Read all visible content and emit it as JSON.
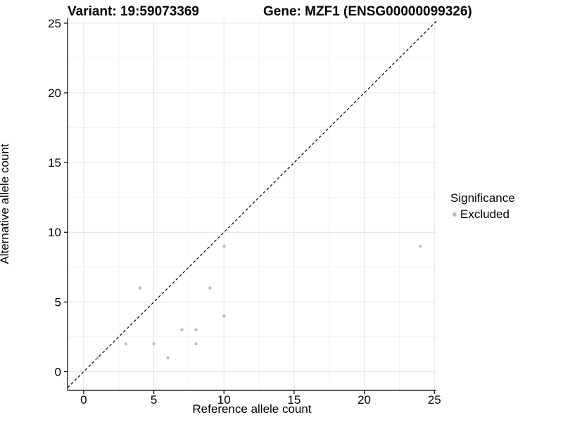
{
  "header": {
    "title_left": "Variant: 19:59073369",
    "title_right": "Gene: MZF1 (ENSG00000099326)"
  },
  "chart_data": {
    "type": "scatter",
    "title": "Variant: 19:59073369   Gene: MZF1 (ENSG00000099326)",
    "xlabel": "Reference allele count",
    "ylabel": "Alternative allele count",
    "xlim": [
      -1.15,
      25.14
    ],
    "ylim": [
      -1.34,
      25.35
    ],
    "x_ticks": [
      0,
      5,
      10,
      15,
      20,
      25
    ],
    "y_ticks": [
      0,
      5,
      10,
      15,
      20,
      25
    ],
    "x_minor_ticks": [
      2.5,
      7.5,
      12.5,
      17.5,
      22.5
    ],
    "y_minor_ticks": [
      2.5,
      7.5,
      12.5,
      17.5,
      22.5
    ],
    "grid": "major-and-minor",
    "series": [
      {
        "name": "Excluded",
        "color": "#BDBDBD",
        "points": [
          [
            1,
            1
          ],
          [
            3,
            2
          ],
          [
            4,
            6
          ],
          [
            5,
            2
          ],
          [
            6,
            1
          ],
          [
            7,
            3
          ],
          [
            8,
            2
          ],
          [
            8,
            3
          ],
          [
            9,
            6
          ],
          [
            10,
            4
          ],
          [
            10,
            9
          ],
          [
            24,
            9
          ]
        ]
      }
    ],
    "abline": {
      "slope": 1,
      "intercept": 0,
      "style": "dashed",
      "color": "#000000"
    },
    "legend": {
      "title": "Significance",
      "position": "right",
      "items": [
        {
          "label": "Excluded",
          "color": "#BDBDBD"
        }
      ]
    },
    "style": {
      "major_grid_color": "#E4E4E4",
      "minor_grid_color": "#F1F1F1",
      "axis_color": "#000000",
      "point_radius": 2.2,
      "tick_font_px": 17
    }
  }
}
